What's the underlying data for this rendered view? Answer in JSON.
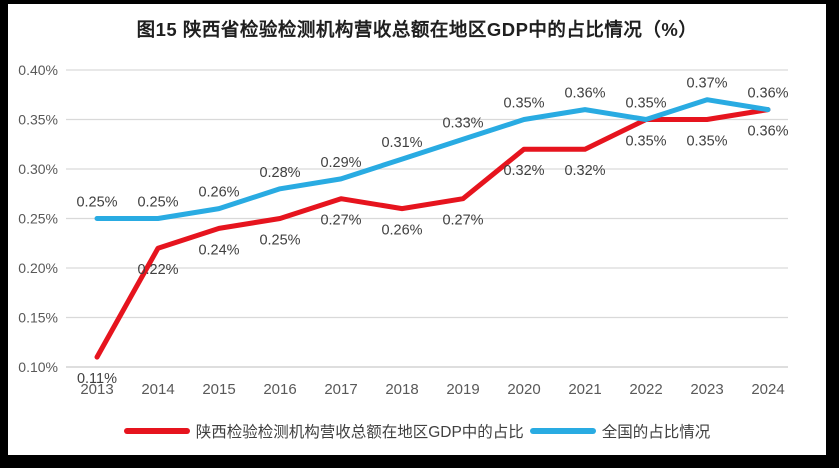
{
  "title": "图15 陕西省检验检测机构营收总额在地区GDP中的占比情况（%）",
  "colors": {
    "frame_bg": "#000000",
    "panel_bg": "#ffffff",
    "grid_line": "#d9d9d9",
    "axis_line": "#c9c9c9",
    "tick_text": "#595959",
    "data_label_text": "#404040",
    "title_text": "#1f1f1f",
    "series_shaanxi": "#e6141e",
    "series_national": "#29abe2"
  },
  "chart_data": {
    "type": "line",
    "title": "图15 陕西省检验检测机构营收总额在地区GDP中的占比情况（%）",
    "categories": [
      "2013",
      "2014",
      "2015",
      "2016",
      "2017",
      "2018",
      "2019",
      "2020",
      "2021",
      "2022",
      "2023",
      "2024"
    ],
    "xlabel": "",
    "ylabel": "",
    "ylim": [
      0.1,
      0.4
    ],
    "grid": true,
    "legend_position": "bottom",
    "yticks": {
      "values": [
        0.4,
        0.35,
        0.3,
        0.25,
        0.2,
        0.15,
        0.1
      ],
      "labels": [
        "0.40%",
        "0.35%",
        "0.30%",
        "0.25%",
        "0.20%",
        "0.15%",
        "0.10%"
      ]
    },
    "series": [
      {
        "id": "shaanxi",
        "name": "陕西检验检测机构营收总额在地区GDP中的占比",
        "color": "#e6141e",
        "label_position": "below",
        "values": [
          0.11,
          0.22,
          0.24,
          0.25,
          0.27,
          0.26,
          0.27,
          0.32,
          0.32,
          0.35,
          0.35,
          0.36
        ],
        "point_labels": [
          "0.11%",
          "0.22%",
          "0.24%",
          "0.25%",
          "0.27%",
          "0.26%",
          "0.27%",
          "0.32%",
          "0.32%",
          "0.35%",
          "0.35%",
          "0.36%"
        ]
      },
      {
        "id": "national",
        "name": "全国的占比情况",
        "color": "#29abe2",
        "label_position": "above",
        "values": [
          0.25,
          0.25,
          0.26,
          0.28,
          0.29,
          0.31,
          0.33,
          0.35,
          0.36,
          0.35,
          0.37,
          0.36
        ],
        "point_labels": [
          "0.25%",
          "0.25%",
          "0.26%",
          "0.28%",
          "0.29%",
          "0.31%",
          "0.33%",
          "0.35%",
          "0.36%",
          "0.35%",
          "0.37%",
          "0.36%"
        ]
      }
    ]
  }
}
